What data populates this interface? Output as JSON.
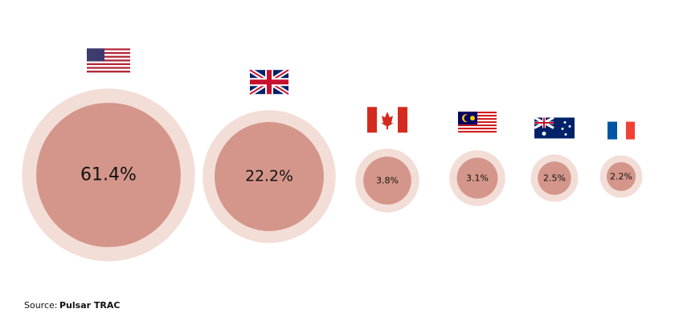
{
  "chart_data": {
    "type": "bubble",
    "values": [
      61.4,
      22.2,
      3.8,
      3.1,
      2.5,
      2.2
    ],
    "value_labels": [
      "61.4%",
      "22.2%",
      "3.8%",
      "3.1%",
      "2.5%",
      "2.2%"
    ],
    "color": "#d4968a",
    "halo_color": "#f3ddd7",
    "source_label": "Source:",
    "source": "Pulsar TRAC",
    "source_color": "#e8462f"
  }
}
